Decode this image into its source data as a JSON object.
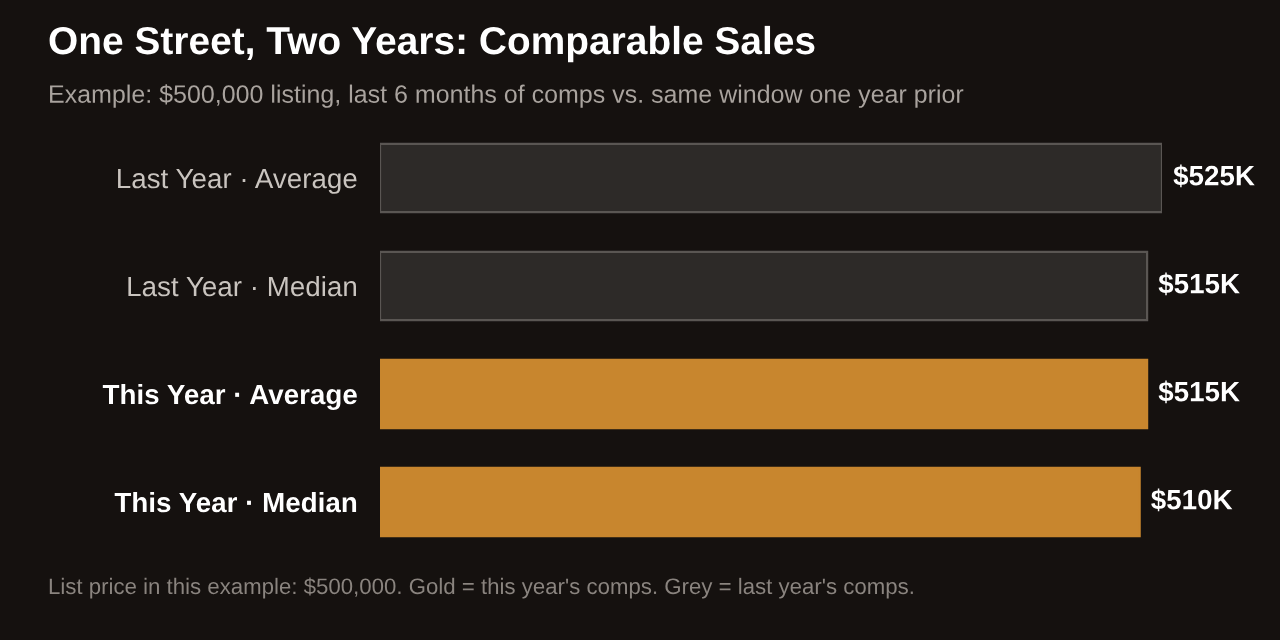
{
  "chart_data": {
    "type": "bar",
    "orientation": "horizontal",
    "title": "One Street, Two Years: Comparable Sales",
    "subtitle": "Example: $500,000 listing, last 6 months of comps vs. same window one year prior",
    "categories": [
      "Last Year · Average",
      "Last Year · Median",
      "This Year · Average",
      "This Year · Median"
    ],
    "values": [
      525,
      515,
      515,
      510
    ],
    "value_labels": [
      "$525K",
      "$515K",
      "$515K",
      "$510K"
    ],
    "colors": [
      "#2d2a28",
      "#2d2a28",
      "#c8862e",
      "#c8862e"
    ],
    "annotations": [
      "List price in this example: $500,000. Gold = this year's comps. Grey = last year's comps."
    ],
    "grid": false,
    "legend": false
  }
}
